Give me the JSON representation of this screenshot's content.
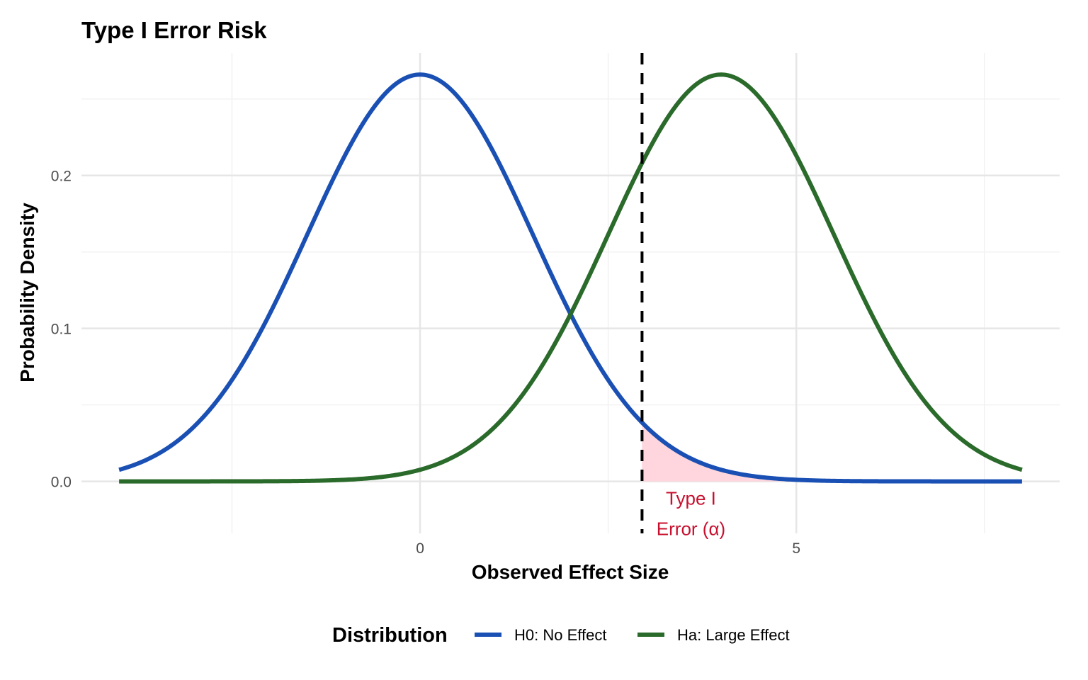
{
  "chart_data": {
    "type": "line",
    "title": "Type I Error Risk",
    "xlabel": "Observed Effect Size",
    "ylabel": "Probability Density",
    "xlim": [
      -4.5,
      8.5
    ],
    "ylim": [
      -0.034,
      0.28
    ],
    "x_ticks": [
      0,
      5
    ],
    "x_tick_labels": [
      "0",
      "5"
    ],
    "y_ticks": [
      0.0,
      0.1,
      0.2
    ],
    "y_tick_labels": [
      "0.0",
      "0.1",
      "0.2"
    ],
    "grid": true,
    "x_range": [
      -4,
      8
    ],
    "series": [
      {
        "name": "H0: No Effect",
        "distribution": "normal",
        "mean": 0,
        "sd": 1.5,
        "color": "#1a50b4"
      },
      {
        "name": "Ha: Large Effect",
        "distribution": "normal",
        "mean": 4,
        "sd": 1.5,
        "color": "#2a6a2a"
      }
    ],
    "critical_value": 2.95,
    "shaded_region": {
      "series": "H0: No Effect",
      "from": 2.95,
      "to": 8,
      "color": "#ffd6dd"
    },
    "annotation": {
      "lines": [
        "Type I",
        "Error (α)"
      ],
      "x": 3.6,
      "color": "#c8102e"
    },
    "legend": {
      "title": "Distribution",
      "placement": "bottom"
    }
  }
}
